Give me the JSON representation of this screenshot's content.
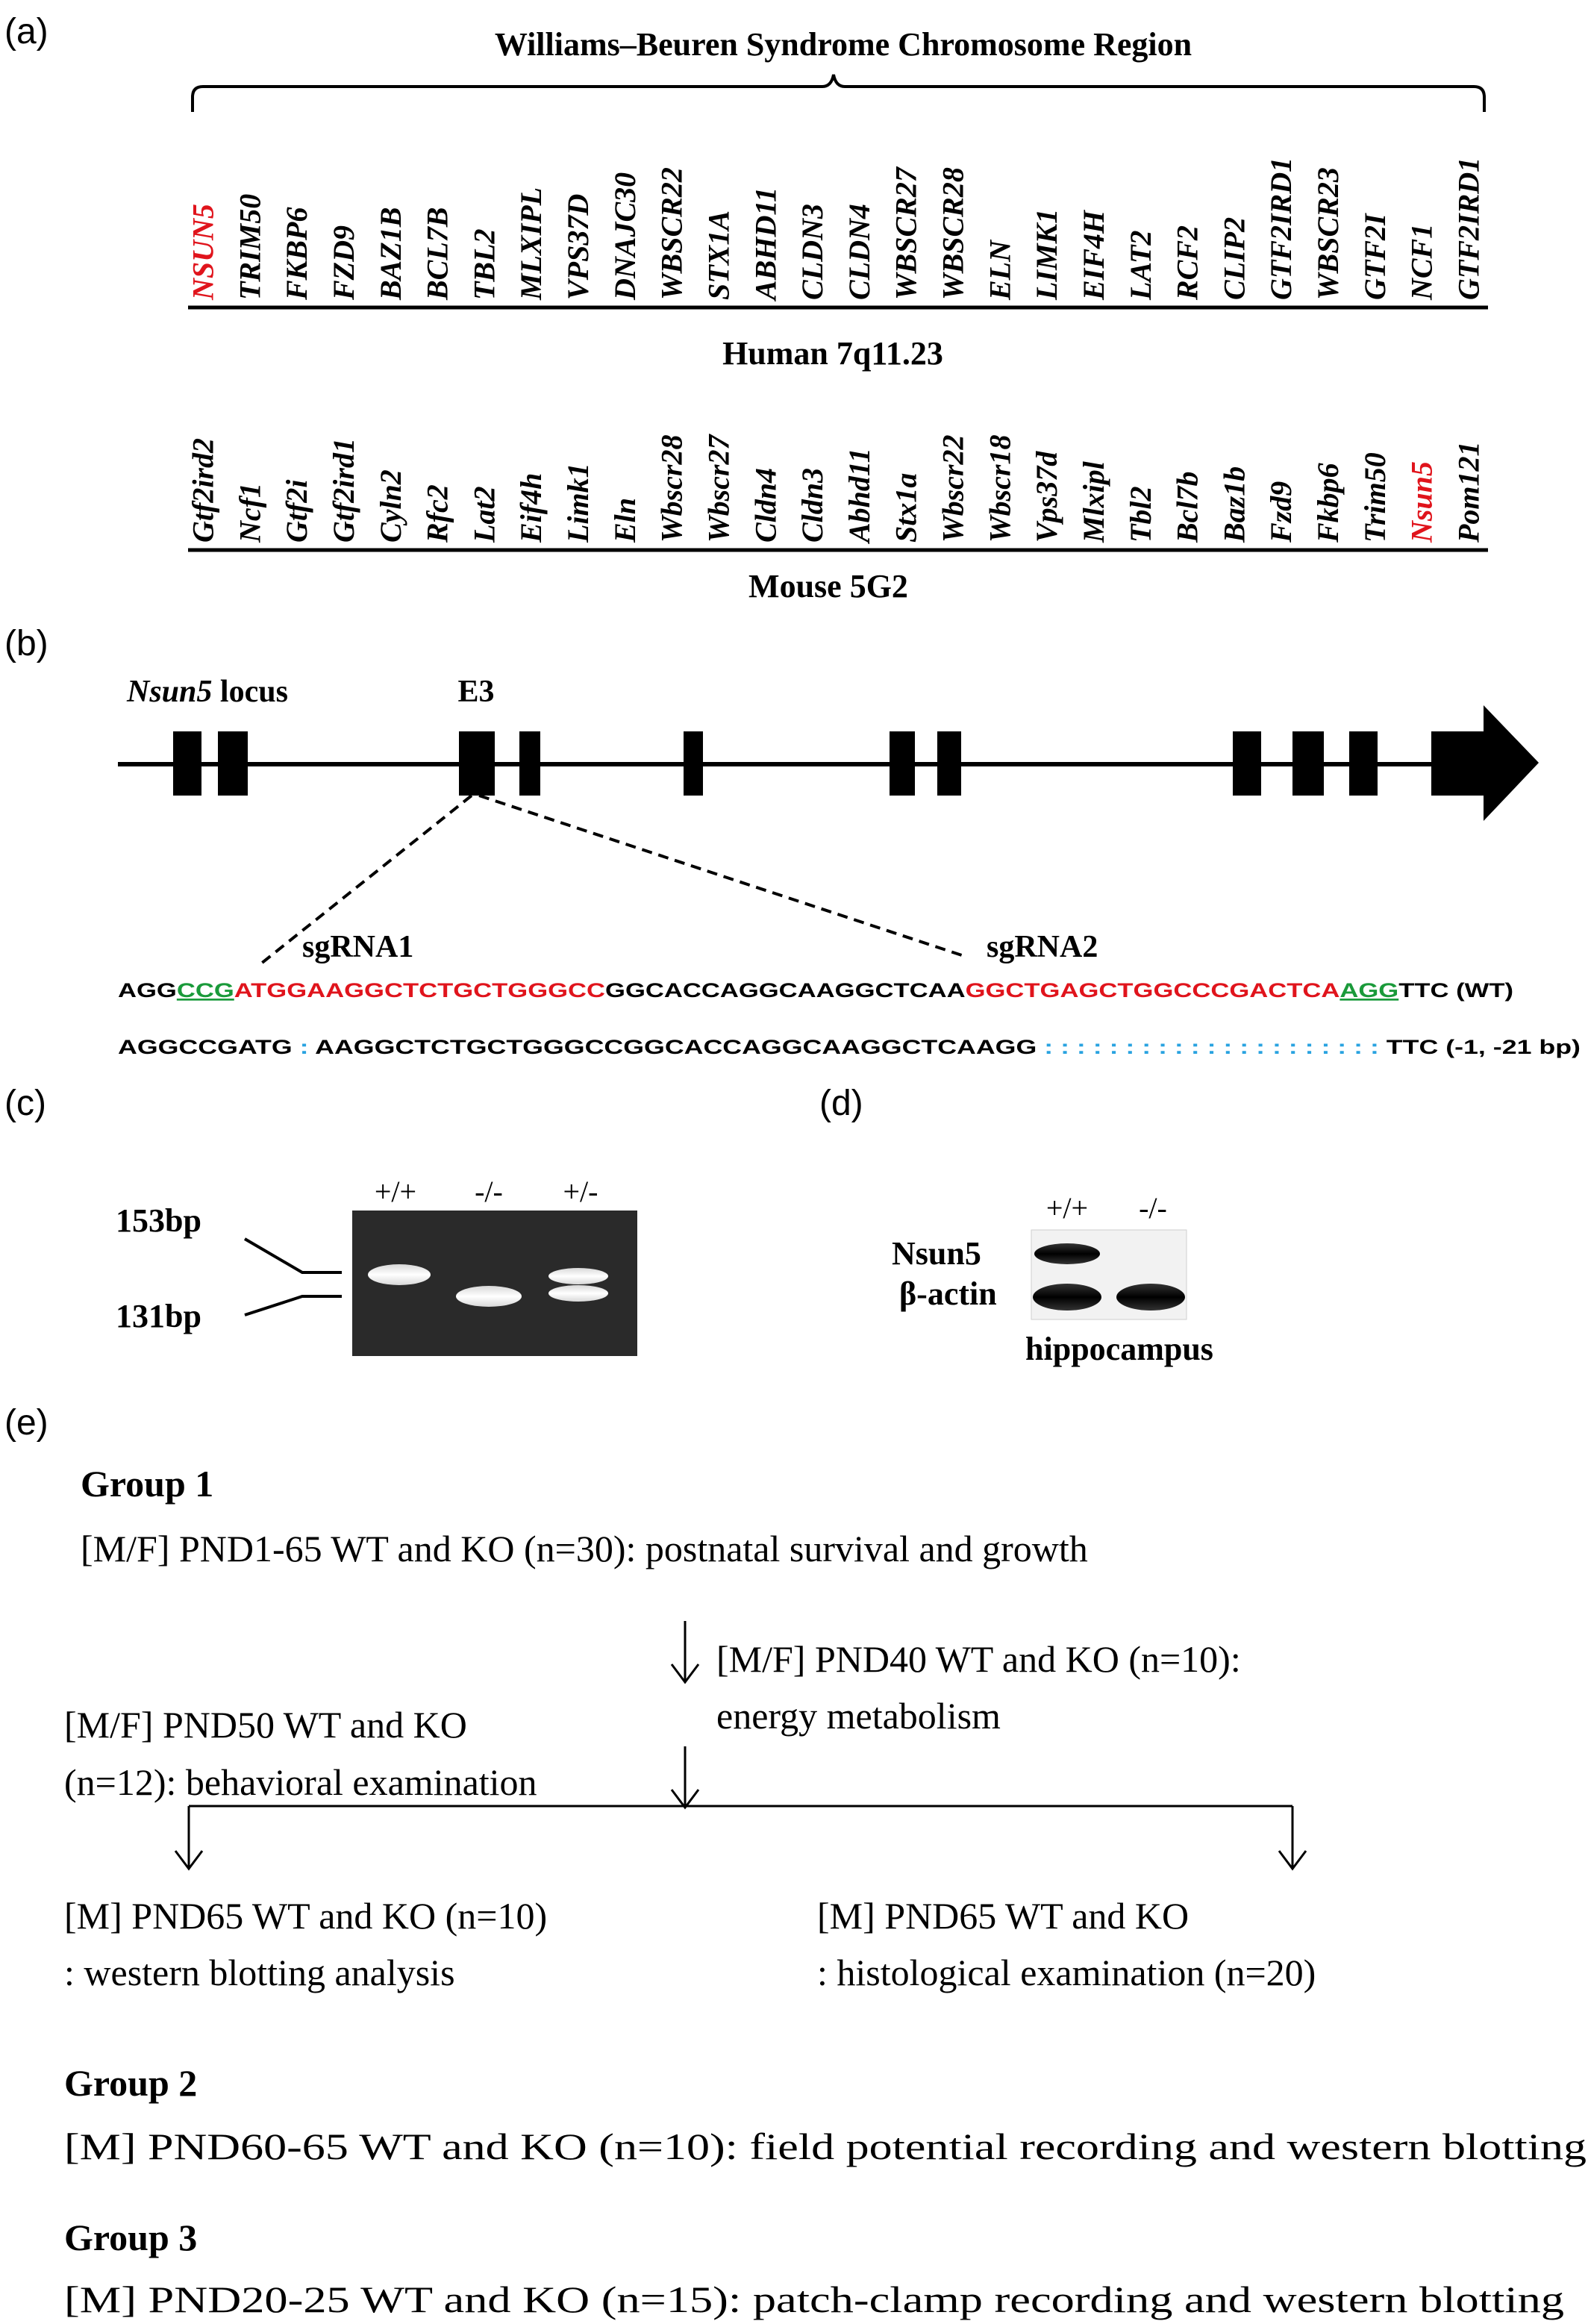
{
  "panel_labels": {
    "a": "(a)",
    "b": "(b)",
    "c": "(c)",
    "d": "(d)",
    "e": "(e)"
  },
  "panel_a": {
    "region_title": "Williams–Beuren Syndrome Chromosome Region",
    "human_label": "Human 7q11.23",
    "mouse_label": "Mouse 5G2",
    "highlight_color": "#e0141c",
    "human_genes": [
      "NSUN5",
      "TRIM50",
      "FKBP6",
      "FZD9",
      "BAZ1B",
      "BCL7B",
      "TBL2",
      "MLXIPL",
      "VPS37D",
      "DNAJC30",
      "WBSCR22",
      "STX1A",
      "ABHD11",
      "CLDN3",
      "CLDN4",
      "WBSCR27",
      "WBSCR28",
      "ELN",
      "LIMK1",
      "EIF4H",
      "LAT2",
      "RCF2",
      "CLIP2",
      "GTF2IRD1",
      "WBSCR23",
      "GTF2I",
      "NCF1",
      "GTF2IRD1"
    ],
    "mouse_genes": [
      "Gtf2ird2",
      "Ncf1",
      "Gtf2i",
      "Gtf2ird1",
      "Cyln2",
      "Rfc2",
      "Lat2",
      "Eif4h",
      "Limk1",
      "Eln",
      "Wbscr28",
      "Wbscr27",
      "Cldn4",
      "Cldn3",
      "Abhd11",
      "Stx1a",
      "Wbscr22",
      "Wbscr18",
      "Vps37d",
      "Mlxipl",
      "Tbl2",
      "Bcl7b",
      "Baz1b",
      "Fzd9",
      "Fkbp6",
      "Trim50",
      "Nsun5",
      "Pom121"
    ],
    "human_highlight": "NSUN5",
    "mouse_highlight": "Nsun5"
  },
  "panel_b": {
    "locus_gene": "Nsun5",
    "locus_word": " locus",
    "exon_label": "E3",
    "sgrna1": "sgRNA1",
    "sgrna2": "sgRNA2",
    "wt_seq": [
      {
        "t": "AGG",
        "c": "#000000",
        "u": false
      },
      {
        "t": "CCG",
        "c": "#1a9a3a",
        "u": true
      },
      {
        "t": "ATGGAAGGCTCTGCTGGGCC",
        "c": "#e0141c",
        "u": false
      },
      {
        "t": "GGCACCAGGCAAGGCTCAA",
        "c": "#000000",
        "u": false
      },
      {
        "t": "GGCTGAGCTGGCCCGACTCA",
        "c": "#e0141c",
        "u": false
      },
      {
        "t": "AGG",
        "c": "#1a9a3a",
        "u": true
      },
      {
        "t": "TTC",
        "c": "#000000",
        "u": false
      },
      {
        "t": " (WT)",
        "c": "#000000",
        "u": false
      }
    ],
    "mut_seq": [
      {
        "t": "AGGCCGATG",
        "c": "#000000"
      },
      {
        "t": " : ",
        "c": "#29a3e0"
      },
      {
        "t": "AAGGCTCTGCTGGGCCGGCACCAGGCAAGGCTCAAGG",
        "c": "#000000"
      },
      {
        "t": " : : : : : : : : : : : : : : : : : : : : : ",
        "c": "#29a3e0"
      },
      {
        "t": "TTC (-1, -21 bp)",
        "c": "#000000"
      }
    ]
  },
  "panel_c": {
    "lanes": [
      "+/+",
      "-/-",
      "+/-"
    ],
    "size_high": "153bp",
    "size_low": "131bp"
  },
  "panel_d": {
    "lanes": [
      "+/+",
      "-/-"
    ],
    "row1": "Nsun5",
    "row2": "β-actin",
    "tissue": "hippocampus"
  },
  "panel_e": {
    "group1_title": "Group 1",
    "g1_line1": "[M/F] PND1-65 WT and KO (n=30): postnatal survival and growth",
    "g1_energy1": "[M/F] PND40 WT and KO (n=10):",
    "g1_energy2": "energy metabolism",
    "g1_behav1": "[M/F] PND50 WT and KO",
    "g1_behav2": "(n=12): behavioral examination",
    "g1_wb1": "[M] PND65 WT and KO (n=10)",
    "g1_wb2": ": western blotting analysis",
    "g1_hist1": "[M] PND65 WT and KO",
    "g1_hist2": ": histological examination (n=20)",
    "group2_title": "Group 2",
    "g2_line": "[M] PND60-65 WT and KO (n=10): field potential recording and western blotting",
    "group3_title": "Group 3",
    "g3_line": "[M] PND20-25 WT and KO (n=15): patch-clamp recording and western blotting"
  }
}
